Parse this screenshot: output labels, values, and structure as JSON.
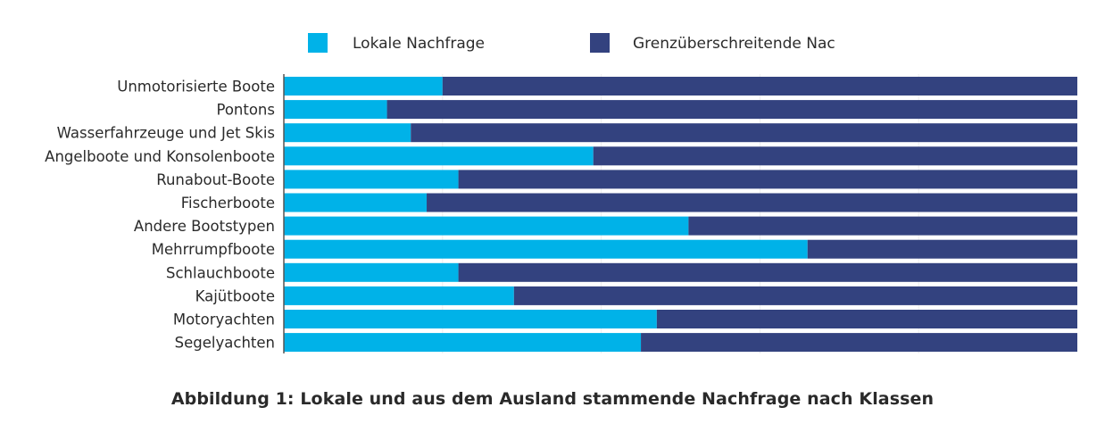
{
  "chart_data": {
    "type": "bar",
    "orientation": "horizontal",
    "stacked": true,
    "categories": [
      "Unmotorisierte Boote",
      "Pontons",
      "Wasserfahrzeuge und Jet Skis",
      "Angelboote und Konsolenboote",
      "Runabout-Boote",
      "Fischerboote",
      "Andere Bootstypen",
      "Mehrrumpfboote",
      "Schlauchboote",
      "Kajütboote",
      "Motoryachten",
      "Segelyachten"
    ],
    "series": [
      {
        "name": "Lokale Nachfrage",
        "color": "#00b2e8",
        "values": [
          20,
          13,
          16,
          39,
          22,
          18,
          51,
          66,
          22,
          29,
          47,
          45
        ]
      },
      {
        "name": "Grenzüberschreitende Nac",
        "color": "#33427f",
        "values": [
          80,
          87,
          84,
          61,
          78,
          82,
          49,
          34,
          78,
          71,
          53,
          55
        ]
      }
    ],
    "xlim": [
      0,
      100
    ],
    "grid": true,
    "legend_position": "top",
    "caption": "Abbildung 1: Lokale und aus dem Ausland stammende Nachfrage nach Klassen"
  }
}
